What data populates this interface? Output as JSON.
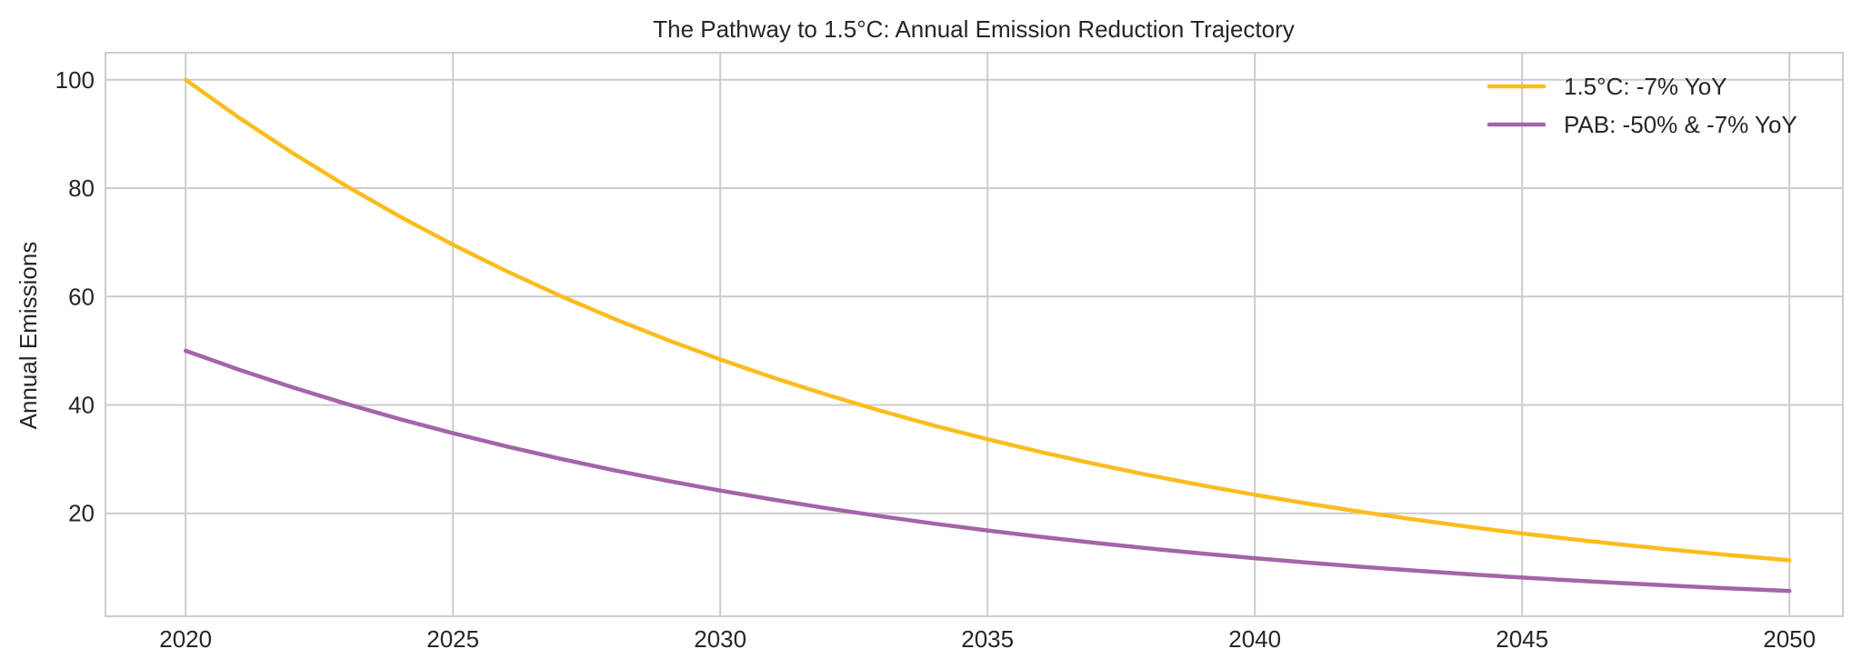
{
  "chart_data": {
    "type": "line",
    "title": "The Pathway to 1.5°C: Annual Emission Reduction Trajectory",
    "xlabel": "",
    "ylabel": "Annual Emissions",
    "xlim": [
      2018.5,
      2051.0
    ],
    "ylim": [
      1.0,
      105.0
    ],
    "xticks": [
      2020,
      2025,
      2030,
      2035,
      2040,
      2045,
      2050
    ],
    "yticks": [
      20,
      40,
      60,
      80,
      100
    ],
    "grid": true,
    "legend_position": "top-right",
    "x": [
      2020,
      2021,
      2022,
      2023,
      2024,
      2025,
      2026,
      2027,
      2028,
      2029,
      2030,
      2031,
      2032,
      2033,
      2034,
      2035,
      2036,
      2037,
      2038,
      2039,
      2040,
      2041,
      2042,
      2043,
      2044,
      2045,
      2046,
      2047,
      2048,
      2049,
      2050
    ],
    "series": [
      {
        "name": "1.5°C: -7% YoY",
        "color": "#fbbc1f",
        "values": [
          100.0,
          93.0,
          86.49,
          80.44,
          74.81,
          69.57,
          64.7,
          60.17,
          55.96,
          52.04,
          48.4,
          45.01,
          41.86,
          38.93,
          36.2,
          33.67,
          31.31,
          29.12,
          27.08,
          25.19,
          23.42,
          21.78,
          20.26,
          18.84,
          17.52,
          16.29,
          15.15,
          14.09,
          13.11,
          12.19,
          11.34
        ]
      },
      {
        "name": "PAB: -50% & -7% YoY",
        "color": "#a464a8",
        "values": [
          50.0,
          46.5,
          43.25,
          40.22,
          37.4,
          34.79,
          32.35,
          30.09,
          27.98,
          26.02,
          24.2,
          22.51,
          20.93,
          19.46,
          18.1,
          16.83,
          15.66,
          14.56,
          13.54,
          12.59,
          11.71,
          10.89,
          10.13,
          9.42,
          8.76,
          8.15,
          7.58,
          7.05,
          6.55,
          6.09,
          5.67
        ]
      }
    ]
  }
}
